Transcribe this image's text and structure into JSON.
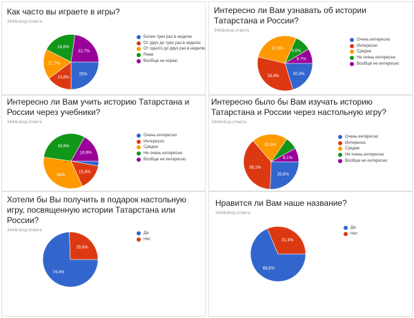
{
  "subtitle": "344&nbsp;ответа",
  "colors": [
    "#3366cc",
    "#dc3912",
    "#ff9900",
    "#109618",
    "#990099"
  ],
  "chart_data": [
    {
      "type": "pie",
      "title": "Как часто вы играете в игры?",
      "categories": [
        "Более трех раз в неделю",
        "От двух до трех раз в неделю",
        "От одного до двух раз в неделю",
        "Реже",
        "Вообще не играю"
      ],
      "values": [
        25,
        14.8,
        17.7,
        19.8,
        22.7
      ],
      "labels": [
        "25%",
        "14,8%",
        "17,7%",
        "19,8%",
        "22,7%"
      ],
      "legend": "right"
    },
    {
      "type": "pie",
      "title": "Интересно ли Вам узнавать об истории Татарстана и России?",
      "categories": [
        "Очень интересно",
        "Интересно",
        "Средне",
        "Не очень интересно",
        "Вообще не интересно"
      ],
      "values": [
        20.3,
        33.4,
        27.9,
        9.6,
        8.7
      ],
      "labels": [
        "20,3%",
        "33,4%",
        "27,9%",
        "9,6%",
        "8,7%"
      ],
      "legend": "right"
    },
    {
      "type": "pie",
      "title": "Интересно ли Вам учить историю Татарстана и России через учебники?",
      "categories": [
        "Очень интересно",
        "Интересно",
        "Средне",
        "Не очень интересно",
        "Вообще не интересно"
      ],
      "values": [
        2.9,
        15.4,
        34,
        30.8,
        16.9
      ],
      "labels": [
        "",
        "15,4%",
        "34%",
        "30,8%",
        "16,9%"
      ],
      "legend": "right"
    },
    {
      "type": "pie",
      "title": "Интересно было бы Вам изучать историю Татарстана и России через настольную игру?",
      "categories": [
        "Очень интересно",
        "Интересно",
        "Средне",
        "Не очень интересно",
        "Вообще не интересно"
      ],
      "values": [
        25.6,
        38.1,
        20.9,
        7.3,
        8.1
      ],
      "labels": [
        "25,6%",
        "38,1%",
        "20,9%",
        "",
        "8,1%"
      ],
      "legend": "right"
    },
    {
      "type": "pie",
      "title": "Хотели бы Вы получить в подарок настольную игру, посвященную истории Татарстана или России?",
      "categories": [
        "Да",
        "Нет"
      ],
      "values": [
        74.4,
        25.6
      ],
      "labels": [
        "74,4%",
        "25,6%"
      ],
      "legend": "right"
    },
    {
      "type": "pie",
      "title": "Нравится ли Вам наше название?",
      "categories": [
        "Да",
        "Нет"
      ],
      "values": [
        68.6,
        31.4
      ],
      "labels": [
        "68,6%",
        "31,4%"
      ],
      "legend": "right"
    }
  ]
}
